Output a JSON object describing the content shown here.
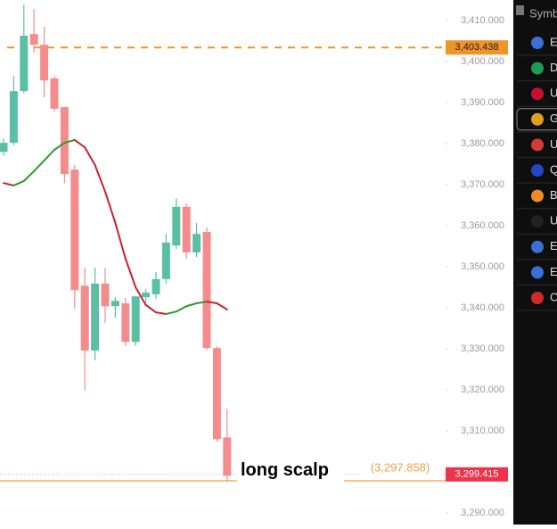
{
  "chart_data": {
    "type": "candlestick",
    "up_color": "#5bbfa6",
    "down_color": "#f48c8e",
    "open": [
      3378.0,
      3380.2,
      3392.8,
      3406.7,
      3404.1,
      3395.9,
      3388.9,
      3373.7,
      3345.4,
      3329.6,
      3345.9,
      3340.4,
      3341.1,
      3331.7,
      3342.6,
      3343.3,
      3347.0,
      3355.2,
      3364.6,
      3353.5,
      3358.5,
      3330.2,
      3308.4
    ],
    "high": [
      3381.3,
      3396.5,
      3413.9,
      3412.8,
      3408.5,
      3396.5,
      3388.9,
      3374.8,
      3349.8,
      3349.8,
      3349.8,
      3342.6,
      3342.4,
      3342.6,
      3344.6,
      3348.7,
      3358.0,
      3366.7,
      3365.5,
      3360.7,
      3359.6,
      3330.7,
      3315.4
    ],
    "low": [
      3377.0,
      3379.6,
      3392.2,
      3402.2,
      3391.3,
      3387.8,
      3370.4,
      3339.8,
      3319.8,
      3327.2,
      3336.3,
      3337.6,
      3330.7,
      3330.7,
      3341.3,
      3342.2,
      3345.9,
      3354.3,
      3352.0,
      3352.4,
      3329.8,
      3307.4,
      3297.6
    ],
    "close": [
      3380.2,
      3392.8,
      3406.3,
      3404.1,
      3395.4,
      3388.5,
      3372.6,
      3344.3,
      3329.6,
      3345.9,
      3340.4,
      3341.7,
      3331.7,
      3342.8,
      3343.7,
      3347.0,
      3355.9,
      3364.6,
      3353.5,
      3358.0,
      3330.2,
      3308.0,
      3299.1
    ],
    "ma": {
      "up_color": "#2e9a2e",
      "down_color": "#d01f2c",
      "values": [
        3370.4,
        3369.8,
        3370.9,
        3373.3,
        3375.9,
        3378.5,
        3380.2,
        3380.9,
        3379.1,
        3374.8,
        3368.3,
        3360.7,
        3352.0,
        3345.0,
        3340.7,
        3338.9,
        3338.5,
        3339.1,
        3340.4,
        3341.1,
        3341.5,
        3341.1,
        3339.6
      ]
    },
    "ylim": [
      3287.2,
      3415
    ],
    "yticks": [
      {
        "value": 3290,
        "label": "3,290.000"
      },
      {
        "value": 3300,
        "label": "3,300.000"
      },
      {
        "value": 3310,
        "label": "3,310.000"
      },
      {
        "value": 3320,
        "label": "3,320.000"
      },
      {
        "value": 3330,
        "label": "3,330.000"
      },
      {
        "value": 3340,
        "label": "3,340.000"
      },
      {
        "value": 3350,
        "label": "3,350.000"
      },
      {
        "value": 3360,
        "label": "3,360.000"
      },
      {
        "value": 3370,
        "label": "3,370.000"
      },
      {
        "value": 3380,
        "label": "3,380.000"
      },
      {
        "value": 3390,
        "label": "3,390.000"
      },
      {
        "value": 3400,
        "label": "3,400.000"
      },
      {
        "value": 3410,
        "label": "3,410.000"
      }
    ],
    "alert": {
      "value": 3403.438,
      "label": "3,403.438",
      "color": "#f0932b"
    },
    "support": {
      "value": 3297.858,
      "label": "(3,297.858)",
      "annotation": "long scalp",
      "color": "#f0a040"
    },
    "last_price": {
      "value": 3299.415,
      "label": "3,299.415",
      "color": "#f0334a"
    }
  },
  "sidebar": {
    "header": "Symb",
    "items": [
      "E",
      "D",
      "U",
      "G",
      "U",
      "Q",
      "B",
      "U",
      "E",
      "E",
      "C"
    ],
    "icon_colors": [
      "#3a6fd8",
      "#1a9e55",
      "#c8102e",
      "#e0a020",
      "#d23b3b",
      "#2446c8",
      "#f08a24",
      "#222",
      "#3a6fd8",
      "#3a6fd8",
      "#d02a2a"
    ],
    "selected": 3
  }
}
